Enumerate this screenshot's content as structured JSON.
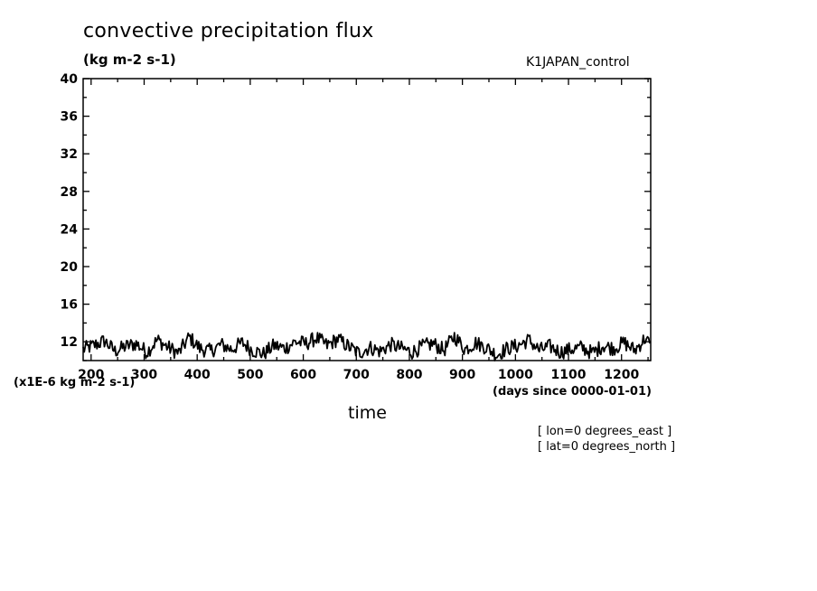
{
  "chart_data": {
    "type": "line",
    "title": "convective precipitation flux",
    "subtitle": "(kg m-2 s-1)",
    "dataset_label": "K1JAPAN_control",
    "ylabel_scale": "(x1E-6 kg m-2 s-1)",
    "xlabel": "time",
    "xlabel_units": "(days since 0000-01-01)",
    "annotations": [
      "[ lon=0 degrees_east ]",
      "[ lat=0 degrees_north ]"
    ],
    "xlim": [
      185,
      1255
    ],
    "ylim": [
      10,
      40
    ],
    "xticks": [
      200,
      300,
      400,
      500,
      600,
      700,
      800,
      900,
      1000,
      1100,
      1200
    ],
    "yticks": [
      12,
      16,
      20,
      24,
      28,
      32,
      36,
      40
    ],
    "grid": false,
    "line_color": "#000000",
    "series": [
      {
        "x": [
          185,
          205,
          225,
          245,
          265,
          285,
          305,
          325,
          345,
          365,
          385,
          405,
          425,
          445,
          465,
          485,
          505,
          525,
          545,
          565,
          585,
          605,
          625,
          645,
          665,
          685,
          705,
          725,
          745,
          765,
          785,
          805,
          825,
          845,
          865,
          885,
          905,
          925,
          945,
          965,
          985,
          1005,
          1025,
          1045,
          1065,
          1085,
          1105,
          1125,
          1145,
          1165,
          1185,
          1205,
          1225,
          1245,
          1255
        ],
        "values": [
          11.2,
          11.6,
          12.1,
          11.0,
          11.5,
          11.8,
          10.9,
          12.2,
          11.4,
          10.8,
          12.5,
          11.3,
          11.0,
          11.7,
          11.2,
          11.9,
          11.1,
          10.7,
          11.6,
          11.3,
          12.0,
          11.8,
          12.4,
          11.6,
          12.3,
          11.5,
          10.8,
          11.4,
          11.0,
          11.7,
          11.3,
          10.9,
          11.5,
          11.8,
          11.1,
          12.6,
          11.2,
          11.9,
          11.4,
          10.6,
          11.3,
          11.6,
          12.2,
          11.1,
          11.5,
          10.9,
          11.2,
          11.4,
          10.8,
          11.6,
          11.3,
          11.9,
          11.1,
          12.4,
          11.5
        ]
      }
    ]
  }
}
